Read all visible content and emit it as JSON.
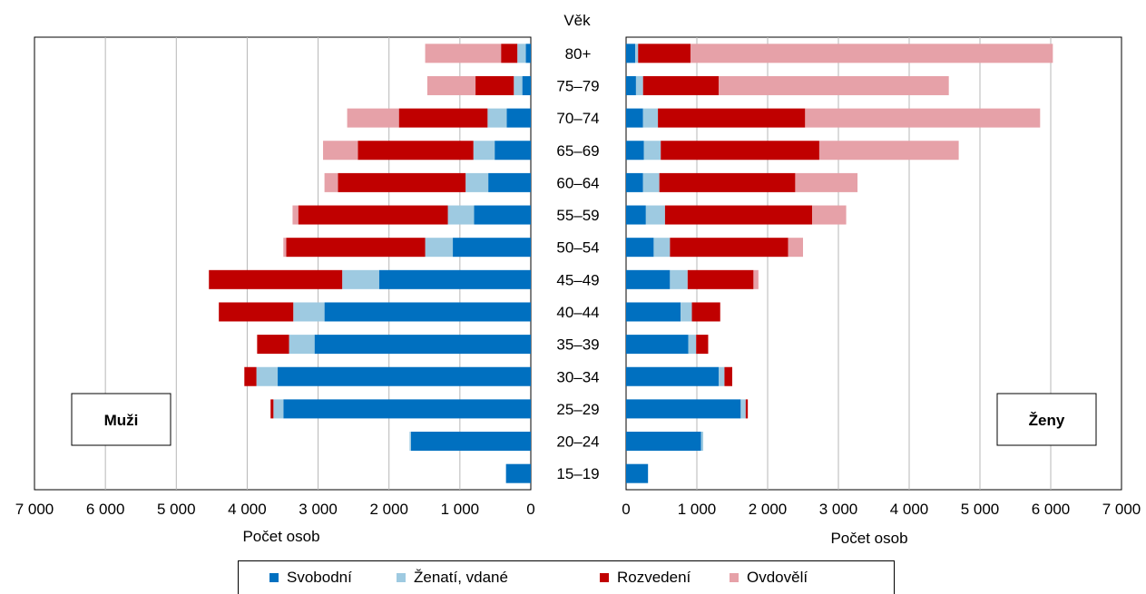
{
  "chart_data": {
    "type": "bar",
    "orientation": "horizontal",
    "layout": "population-pyramid",
    "category_title": "Věk",
    "categories": [
      "80+",
      "75–79",
      "70–74",
      "65–69",
      "60–64",
      "55–59",
      "50–54",
      "45–49",
      "40–44",
      "35–39",
      "30–34",
      "25–29",
      "20–24",
      "15–19"
    ],
    "stacked": true,
    "grid": true,
    "legend_position": "bottom",
    "panels": [
      {
        "name": "Muži",
        "direction": "left",
        "xlabel": "Počet osob",
        "xlim": [
          0,
          7000
        ],
        "ticks": [
          0,
          1000,
          2000,
          3000,
          4000,
          5000,
          6000,
          7000
        ],
        "tick_labels": [
          "0",
          "1 000",
          "2 000",
          "3 000",
          "4 000",
          "5 000",
          "6 000",
          "7 000"
        ],
        "series": [
          {
            "name": "Svobodní",
            "values": [
              70,
              120,
              340,
              510,
              600,
              800,
              1100,
              2140,
              2910,
              3050,
              3570,
              3490,
              1690,
              350
            ]
          },
          {
            "name": "Ženatí, vdané",
            "values": [
              120,
              120,
              270,
              300,
              320,
              370,
              390,
              520,
              440,
              360,
              300,
              140,
              20,
              0
            ]
          },
          {
            "name": "Rozvedení",
            "values": [
              230,
              540,
              1250,
              1630,
              1800,
              2110,
              1960,
              1880,
              1050,
              450,
              170,
              40,
              0,
              0
            ]
          },
          {
            "name": "Ovdovělí",
            "values": [
              1070,
              680,
              730,
              490,
              190,
              80,
              40,
              0,
              0,
              0,
              0,
              0,
              0,
              0
            ]
          }
        ]
      },
      {
        "name": "Ženy",
        "direction": "right",
        "xlabel": "Počet osob",
        "xlim": [
          0,
          7000
        ],
        "ticks": [
          0,
          1000,
          2000,
          3000,
          4000,
          5000,
          6000,
          7000
        ],
        "tick_labels": [
          "0",
          "1 000",
          "2 000",
          "3 000",
          "4 000",
          "5 000",
          "6 000",
          "7 000"
        ],
        "series": [
          {
            "name": "Svobodní",
            "values": [
              130,
              140,
              240,
              250,
              240,
              280,
              390,
              620,
              770,
              880,
              1310,
              1620,
              1060,
              310
            ]
          },
          {
            "name": "Ženatí, vdané",
            "values": [
              40,
              100,
              210,
              240,
              230,
              270,
              230,
              250,
              160,
              110,
              80,
              70,
              30,
              0
            ]
          },
          {
            "name": "Rozvedení",
            "values": [
              740,
              1070,
              2080,
              2240,
              1920,
              2080,
              1670,
              930,
              400,
              170,
              110,
              30,
              0,
              0
            ]
          },
          {
            "name": "Ovdovělí",
            "values": [
              5120,
              3250,
              3320,
              1970,
              880,
              480,
              210,
              70,
              0,
              0,
              0,
              0,
              0,
              0
            ]
          }
        ]
      }
    ],
    "colors": [
      "#0070c0",
      "#9ecae1",
      "#c00000",
      "#e6a1a8"
    ],
    "legend": [
      "Svobodní",
      "Ženatí, vdané",
      "Rozvedení",
      "Ovdovělí"
    ]
  }
}
